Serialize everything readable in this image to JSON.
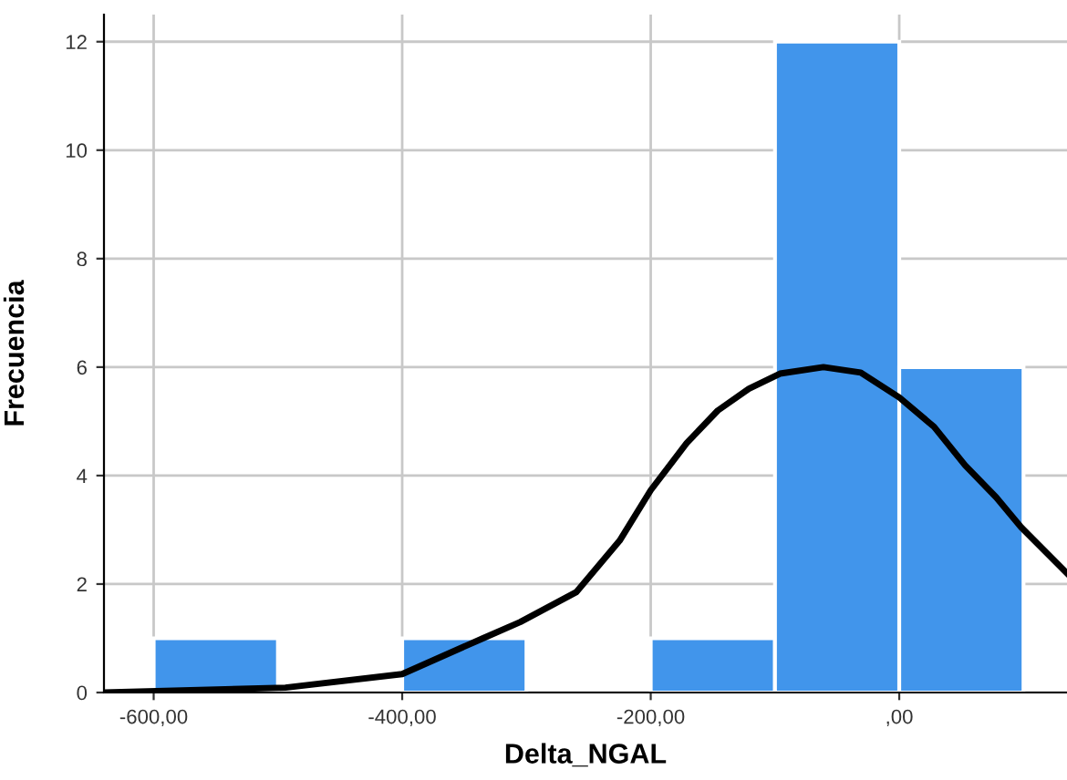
{
  "chart_data": {
    "type": "histogram",
    "xlabel": "Delta_NGAL",
    "ylabel": "Frecuencia",
    "bins": [
      -600,
      -500,
      -400,
      -300,
      -200,
      -100,
      0,
      100
    ],
    "values": [
      1,
      0,
      1,
      0,
      1,
      12,
      6
    ],
    "color": "#4195eb",
    "series": [
      {
        "type": "line",
        "color": "#000000",
        "x": [
          -640,
          -494,
          -400,
          -335,
          -305,
          -260,
          -225,
          -200,
          -171,
          -146,
          -121,
          -96,
          -61,
          -31,
          0,
          28,
          53,
          78,
          98,
          135
        ],
        "values": [
          0,
          0.09,
          0.34,
          1.0,
          1.3,
          1.85,
          2.8,
          3.73,
          4.6,
          5.2,
          5.6,
          5.88,
          6.0,
          5.9,
          5.44,
          4.9,
          4.19,
          3.6,
          3.05,
          2.2
        ]
      }
    ],
    "xlim": [
      -640,
      135
    ],
    "ylim": [
      0,
      12.5
    ],
    "xticks": [
      {
        "value": -600,
        "label": "-600,00"
      },
      {
        "value": -400,
        "label": "-400,00"
      },
      {
        "value": -200,
        "label": "-200,00"
      },
      {
        "value": 0,
        "label": ",00"
      }
    ],
    "yticks": [
      0,
      2,
      4,
      6,
      8,
      10,
      12
    ],
    "grid": true,
    "marker": "none",
    "line_style": "solid"
  }
}
